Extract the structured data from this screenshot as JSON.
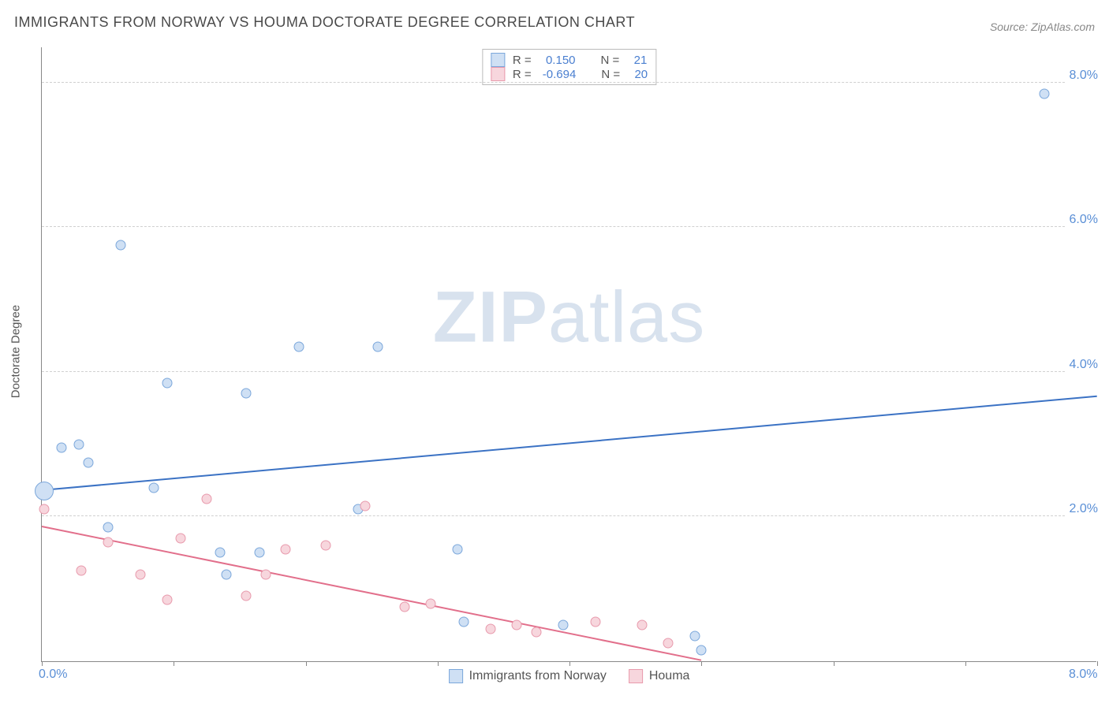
{
  "title": "IMMIGRANTS FROM NORWAY VS HOUMA DOCTORATE DEGREE CORRELATION CHART",
  "source": "Source: ZipAtlas.com",
  "y_axis_label": "Doctorate Degree",
  "watermark": {
    "bold": "ZIP",
    "rest": "atlas"
  },
  "chart": {
    "type": "scatter",
    "background_color": "#ffffff",
    "grid_color": "#d0d0d0",
    "axis_color": "#888888",
    "xlim": [
      0,
      8
    ],
    "ylim": [
      0,
      8.5
    ],
    "x_ticks": [
      {
        "v": 0,
        "label": "0.0%"
      },
      {
        "v": 1
      },
      {
        "v": 2
      },
      {
        "v": 3
      },
      {
        "v": 4
      },
      {
        "v": 5
      },
      {
        "v": 6
      },
      {
        "v": 7
      },
      {
        "v": 8,
        "label": "8.0%"
      }
    ],
    "y_gridlines": [
      {
        "v": 2,
        "label": "2.0%"
      },
      {
        "v": 4,
        "label": "4.0%"
      },
      {
        "v": 6,
        "label": "6.0%"
      },
      {
        "v": 8,
        "label": "8.0%"
      }
    ],
    "series": [
      {
        "name": "Immigrants from Norway",
        "fill": "#cfe0f4",
        "stroke": "#7ba7db",
        "line_color": "#3b72c4",
        "r_label": "R = ",
        "r_value": " 0.150",
        "n_label": "N = ",
        "n_value": " 21",
        "trend": {
          "x1": 0,
          "y1": 2.35,
          "x2": 8,
          "y2": 3.65
        },
        "points": [
          {
            "x": 0.02,
            "y": 2.35,
            "size": 24
          },
          {
            "x": 0.15,
            "y": 2.95,
            "size": 13
          },
          {
            "x": 0.28,
            "y": 3.0,
            "size": 13
          },
          {
            "x": 0.35,
            "y": 2.75,
            "size": 13
          },
          {
            "x": 0.5,
            "y": 1.85,
            "size": 13
          },
          {
            "x": 0.6,
            "y": 5.75,
            "size": 13
          },
          {
            "x": 0.85,
            "y": 2.4,
            "size": 13
          },
          {
            "x": 0.95,
            "y": 3.85,
            "size": 13
          },
          {
            "x": 1.35,
            "y": 1.5,
            "size": 13
          },
          {
            "x": 1.4,
            "y": 1.2,
            "size": 13
          },
          {
            "x": 1.55,
            "y": 3.7,
            "size": 13
          },
          {
            "x": 1.65,
            "y": 1.5,
            "size": 13
          },
          {
            "x": 1.95,
            "y": 4.35,
            "size": 13
          },
          {
            "x": 2.4,
            "y": 2.1,
            "size": 13
          },
          {
            "x": 2.55,
            "y": 4.35,
            "size": 13
          },
          {
            "x": 3.15,
            "y": 1.55,
            "size": 13
          },
          {
            "x": 3.2,
            "y": 0.55,
            "size": 13
          },
          {
            "x": 3.95,
            "y": 0.5,
            "size": 13
          },
          {
            "x": 4.95,
            "y": 0.35,
            "size": 13
          },
          {
            "x": 5.0,
            "y": 0.15,
            "size": 13
          },
          {
            "x": 7.6,
            "y": 7.85,
            "size": 13
          }
        ]
      },
      {
        "name": "Houma",
        "fill": "#f7d6dd",
        "stroke": "#e89aac",
        "line_color": "#e26f8b",
        "r_label": "R = ",
        "r_value": "-0.694",
        "n_label": "N = ",
        "n_value": " 20",
        "trend": {
          "x1": 0,
          "y1": 1.85,
          "x2": 5.0,
          "y2": 0.0
        },
        "points": [
          {
            "x": 0.02,
            "y": 2.1,
            "size": 13
          },
          {
            "x": 0.3,
            "y": 1.25,
            "size": 13
          },
          {
            "x": 0.5,
            "y": 1.65,
            "size": 13
          },
          {
            "x": 0.75,
            "y": 1.2,
            "size": 13
          },
          {
            "x": 0.95,
            "y": 0.85,
            "size": 13
          },
          {
            "x": 1.05,
            "y": 1.7,
            "size": 13
          },
          {
            "x": 1.25,
            "y": 2.25,
            "size": 13
          },
          {
            "x": 1.55,
            "y": 0.9,
            "size": 13
          },
          {
            "x": 1.7,
            "y": 1.2,
            "size": 13
          },
          {
            "x": 1.85,
            "y": 1.55,
            "size": 13
          },
          {
            "x": 2.15,
            "y": 1.6,
            "size": 13
          },
          {
            "x": 2.45,
            "y": 2.15,
            "size": 13
          },
          {
            "x": 2.75,
            "y": 0.75,
            "size": 13
          },
          {
            "x": 2.95,
            "y": 0.8,
            "size": 13
          },
          {
            "x": 3.4,
            "y": 0.45,
            "size": 13
          },
          {
            "x": 3.6,
            "y": 0.5,
            "size": 13
          },
          {
            "x": 3.75,
            "y": 0.4,
            "size": 13
          },
          {
            "x": 4.2,
            "y": 0.55,
            "size": 13
          },
          {
            "x": 4.55,
            "y": 0.5,
            "size": 13
          },
          {
            "x": 4.75,
            "y": 0.25,
            "size": 13
          }
        ]
      }
    ]
  }
}
